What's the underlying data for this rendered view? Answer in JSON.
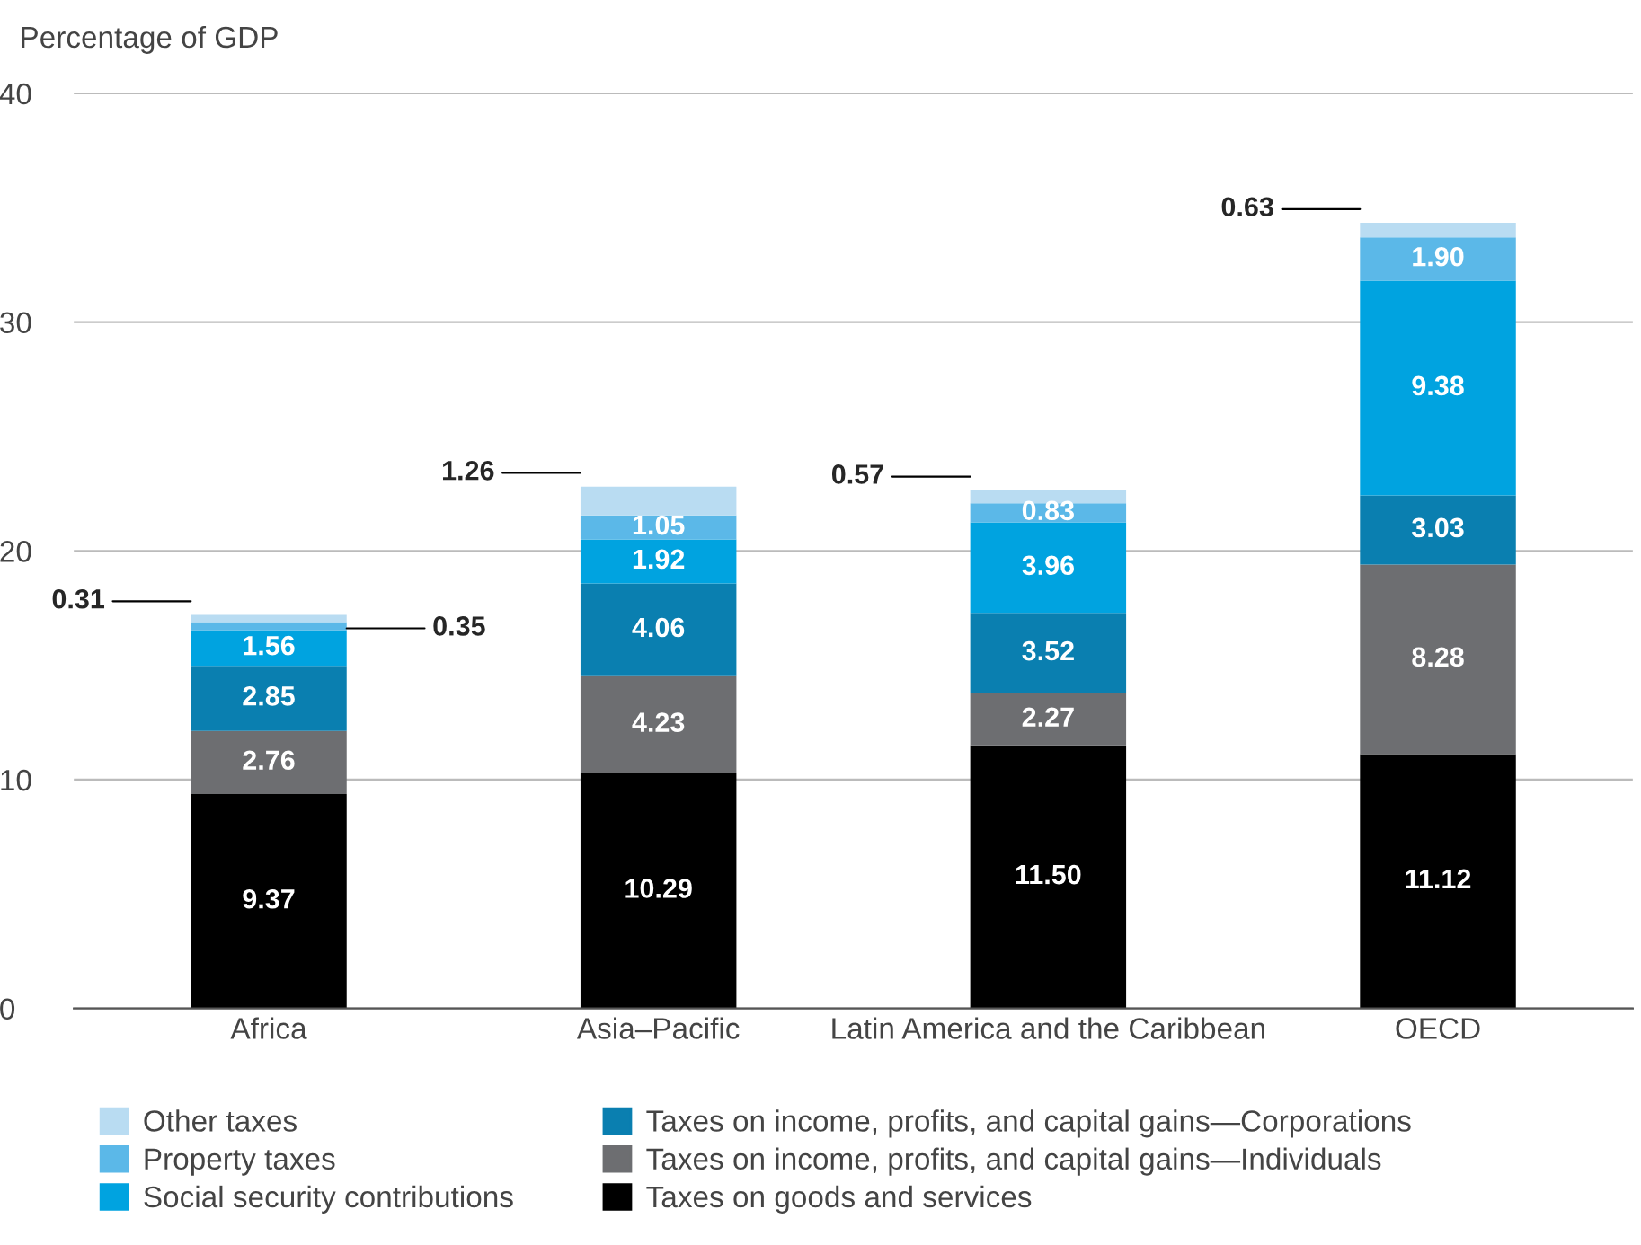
{
  "chart_data": {
    "type": "bar",
    "stacked": true,
    "ylabel": "Percentage of GDP",
    "categories": [
      "Africa",
      "Asia–Pacific",
      "Latin America and the Caribbean",
      "OECD"
    ],
    "series": [
      {
        "name": "Taxes on goods and services",
        "color": "#000000",
        "values": [
          9.37,
          10.29,
          11.5,
          11.12
        ],
        "value_labels": [
          "9.37",
          "10.29",
          "11.50",
          "11.12"
        ]
      },
      {
        "name": "Taxes on income, profits, and capital gains—Individuals",
        "color": "#6d6e71",
        "values": [
          2.76,
          4.23,
          2.27,
          8.28
        ],
        "value_labels": [
          "2.76",
          "4.23",
          "2.27",
          "8.28"
        ]
      },
      {
        "name": "Taxes on income, profits, and capital gains—Corporations",
        "color": "#0a7fb0",
        "values": [
          2.85,
          4.06,
          3.52,
          3.03
        ],
        "value_labels": [
          "2.85",
          "4.06",
          "3.52",
          "3.03"
        ]
      },
      {
        "name": "Social security contributions",
        "color": "#00a3e0",
        "values": [
          1.56,
          1.92,
          3.96,
          9.38
        ],
        "value_labels": [
          "1.56",
          "1.92",
          "3.96",
          "9.38"
        ]
      },
      {
        "name": "Property taxes",
        "color": "#5bb8e8",
        "values": [
          0.35,
          1.05,
          0.83,
          1.9
        ],
        "value_labels": [
          "0.35",
          "1.05",
          "0.83",
          "1.90"
        ]
      },
      {
        "name": "Other taxes",
        "color": "#b9dcf2",
        "values": [
          0.31,
          1.26,
          0.57,
          0.63
        ],
        "value_labels": [
          "0.31",
          "1.26",
          "0.57",
          "0.63"
        ]
      }
    ],
    "ylim": [
      0,
      40
    ],
    "yticks": [
      0,
      10,
      20,
      30,
      40
    ],
    "grid": "y",
    "legend": "bottom"
  }
}
